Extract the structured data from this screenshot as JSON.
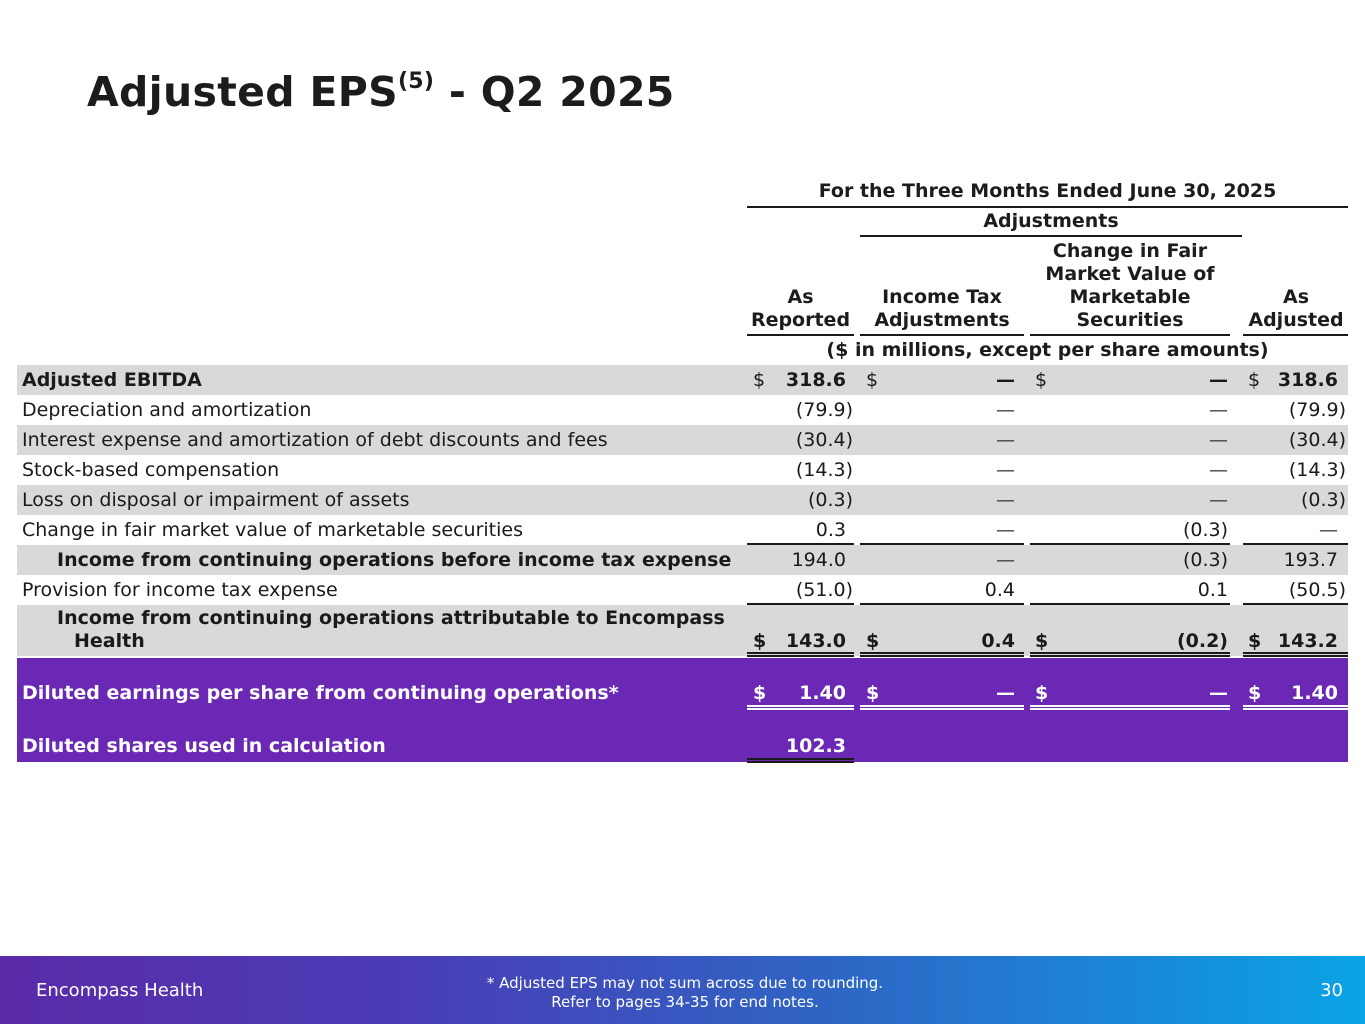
{
  "title": "Adjusted EPS",
  "title_sup": "(5)",
  "title_suffix": " - Q2 2025",
  "table": {
    "period_header": "For the Three Months Ended June 30, 2025",
    "adjustments_header": "Adjustments",
    "columns": [
      "As Reported",
      "Income Tax Adjustments",
      "Change in Fair Market Value of Marketable Securities",
      "As Adjusted"
    ],
    "units_note": "($ in millions, except per share amounts)",
    "rows": [
      {
        "label": "Adjusted EBITDA",
        "values": [
          "318.6",
          "—",
          "—",
          "318.6"
        ],
        "dollar": true
      },
      {
        "label": "Depreciation and amortization",
        "values": [
          "(79.9)",
          "—",
          "—",
          "(79.9)"
        ]
      },
      {
        "label": "Interest expense and amortization of debt discounts and fees",
        "values": [
          "(30.4)",
          "—",
          "—",
          "(30.4)"
        ]
      },
      {
        "label": "Stock-based compensation",
        "values": [
          "(14.3)",
          "—",
          "—",
          "(14.3)"
        ]
      },
      {
        "label": "Loss on disposal or impairment of assets",
        "values": [
          "(0.3)",
          "—",
          "—",
          "(0.3)"
        ]
      },
      {
        "label": "Change in fair market value of marketable securities",
        "values": [
          "0.3",
          "—",
          "(0.3)",
          "—"
        ]
      },
      {
        "label": "Income from continuing operations before income tax expense",
        "values": [
          "194.0",
          "—",
          "(0.3)",
          "193.7"
        ]
      },
      {
        "label": "Provision for income tax expense",
        "values": [
          "(51.0)",
          "0.4",
          "0.1",
          "(50.5)"
        ]
      },
      {
        "label_line1": "Income from continuing operations attributable to Encompass",
        "label_line2": "Health",
        "values": [
          "143.0",
          "0.4",
          "(0.2)",
          "143.2"
        ],
        "dollar": true
      },
      {
        "label": "Diluted earnings per share from continuing operations*",
        "values": [
          "1.40",
          "—",
          "—",
          "1.40"
        ],
        "dollar": true
      },
      {
        "label": "Diluted shares used in calculation",
        "values": [
          "102.3"
        ]
      }
    ],
    "currency_symbol": "$"
  },
  "footer": {
    "brand": "Encompass Health",
    "note_line1": "*  Adjusted EPS may not sum across due to rounding.",
    "note_line2": "Refer to pages 34-35 for end notes.",
    "page_number": "30"
  },
  "colors": {
    "highlight_row": "#6a28b5",
    "shaded_row": "#d9d9d9",
    "footer_gradient_start": "#5a2aa8",
    "footer_gradient_end": "#0aa3e6"
  }
}
